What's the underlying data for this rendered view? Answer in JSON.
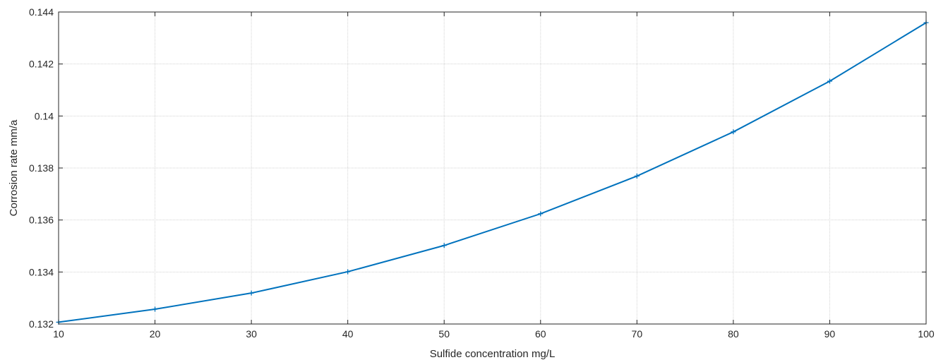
{
  "chart_data": {
    "type": "line",
    "xlabel": "Sulfide concentration mg/L",
    "ylabel": "Corrosion rate mm/a",
    "xlim": [
      10,
      100
    ],
    "ylim": [
      0.132,
      0.144
    ],
    "x_ticks": [
      10,
      20,
      30,
      40,
      50,
      60,
      70,
      80,
      90,
      100
    ],
    "y_ticks": [
      0.132,
      0.134,
      0.136,
      0.138,
      0.14,
      0.142,
      0.144
    ],
    "y_tick_labels": [
      "0.132",
      "0.134",
      "0.136",
      "0.138",
      "0.14",
      "0.142",
      "0.144"
    ],
    "grid": true,
    "line_color": "#0072BD",
    "marker": "plus",
    "series": [
      {
        "x": [
          10,
          20,
          30,
          40,
          50,
          60,
          70,
          80,
          90,
          100
        ],
        "y": [
          0.13207,
          0.13257,
          0.13319,
          0.13401,
          0.13502,
          0.13624,
          0.13769,
          0.13939,
          0.14134,
          0.14359
        ]
      }
    ]
  }
}
